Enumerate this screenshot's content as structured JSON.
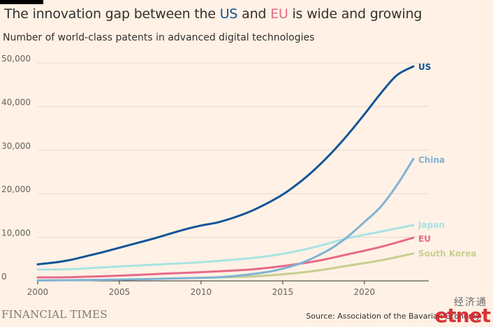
{
  "title": {
    "prefix": "The innovation gap between the ",
    "us": "US",
    "middle": " and ",
    "eu": "EU",
    "suffix": " is wide and growing"
  },
  "subtitle": "Number of world-class patents in advanced digital technologies",
  "footer": {
    "brand": "FINANCIAL TIMES",
    "source": "Source: Association of the Bavarian Economy"
  },
  "watermark": {
    "chinese": "经济通",
    "logo": "etnet"
  },
  "chart_data": {
    "type": "line",
    "x_ticks": [
      2000,
      2005,
      2010,
      2015,
      2020
    ],
    "y_ticks": [
      0,
      10000,
      20000,
      30000,
      40000,
      50000
    ],
    "y_tick_labels": [
      "0",
      "10,000",
      "20,000",
      "30,000",
      "40,000",
      "50,000"
    ],
    "xlim": [
      2000,
      2023
    ],
    "ylim": [
      0,
      50000
    ],
    "grid": true,
    "legend": "inline labels at line ends",
    "series": [
      {
        "name": "South Korea",
        "color": "#c7cf8f",
        "x": [
          2000,
          2005,
          2010,
          2013,
          2015,
          2017,
          2019,
          2021,
          2023
        ],
        "y": [
          100,
          300,
          700,
          1000,
          1500,
          2300,
          3500,
          4700,
          6300
        ]
      },
      {
        "name": "Japan",
        "color": "#a8e3e3",
        "x": [
          2000,
          2002,
          2005,
          2008,
          2010,
          2013,
          2015,
          2017,
          2019,
          2021,
          2023
        ],
        "y": [
          2600,
          2700,
          3300,
          3900,
          4300,
          5200,
          6200,
          7800,
          9800,
          11300,
          12800
        ]
      },
      {
        "name": "EU",
        "color": "#e66a8a",
        "x": [
          2000,
          2002,
          2005,
          2008,
          2010,
          2013,
          2015,
          2017,
          2019,
          2021,
          2023
        ],
        "y": [
          800,
          850,
          1200,
          1700,
          2000,
          2600,
          3400,
          4500,
          6100,
          7800,
          9900
        ]
      },
      {
        "name": "China",
        "color": "#7fb3d5",
        "x": [
          2000,
          2005,
          2010,
          2012,
          2014,
          2015,
          2016,
          2017,
          2018,
          2019,
          2020,
          2021,
          2022,
          2023
        ],
        "y": [
          100,
          300,
          700,
          1100,
          2000,
          2800,
          3900,
          5500,
          7500,
          10200,
          13500,
          17000,
          22000,
          28000
        ]
      },
      {
        "name": "US",
        "color": "#0f5499",
        "x": [
          2000,
          2001,
          2002,
          2003,
          2004,
          2005,
          2006,
          2007,
          2008,
          2009,
          2010,
          2011,
          2012,
          2013,
          2014,
          2015,
          2016,
          2017,
          2018,
          2019,
          2020,
          2021,
          2022,
          2023
        ],
        "y": [
          3800,
          4200,
          4800,
          5700,
          6600,
          7600,
          8600,
          9600,
          10700,
          11800,
          12700,
          13400,
          14500,
          15900,
          17700,
          19800,
          22500,
          25700,
          29400,
          33600,
          38200,
          43000,
          47200,
          49200
        ]
      }
    ],
    "labels": [
      {
        "name": "US",
        "color": "#0f5499"
      },
      {
        "name": "China",
        "color": "#7fb3d5"
      },
      {
        "name": "Japan",
        "color": "#a8e3e3"
      },
      {
        "name": "EU",
        "color": "#e66a8a"
      },
      {
        "name": "South Korea",
        "color": "#c7cf8f"
      }
    ]
  }
}
